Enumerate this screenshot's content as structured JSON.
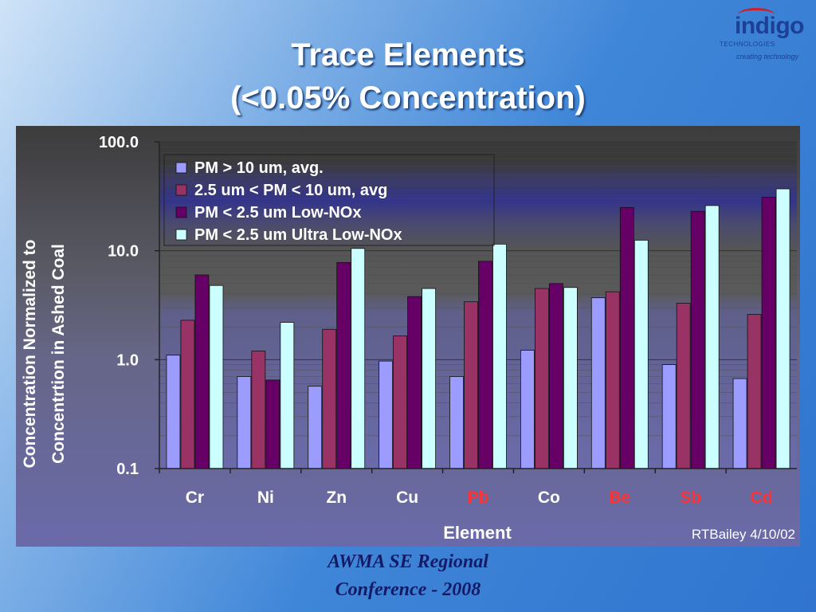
{
  "slide": {
    "title_line1": "Trace Elements",
    "title_line2": "(<0.05% Concentration)",
    "footer_line1": "AWMA SE Regional",
    "footer_line2": "Conference - 2008"
  },
  "logo": {
    "word": "indigo",
    "sub": "TECHNOLOGIES",
    "tagline": "creating technology"
  },
  "chart_data": {
    "type": "bar",
    "scale": "log",
    "ylim": [
      0.1,
      100.0
    ],
    "ytick_labels": [
      "100.0",
      "10.0",
      "1.0",
      "0.1"
    ],
    "xlabel": "Element",
    "ylabel": "Concentration Normalized to Concentrtion in Ashed Coal",
    "credit": "RTBailey 4/10/02",
    "categories": [
      "Cr",
      "Ni",
      "Zn",
      "Cu",
      "Pb",
      "Co",
      "Be",
      "Sb",
      "Cd"
    ],
    "highlight_categories": [
      "Pb",
      "Be",
      "Sb",
      "Cd"
    ],
    "legend_position": "top-left",
    "series": [
      {
        "name": "PM > 10 um, avg.",
        "color": "#9c9cff",
        "values": [
          1.1,
          0.7,
          0.57,
          0.97,
          0.7,
          1.22,
          3.7,
          0.9,
          0.67
        ]
      },
      {
        "name": "2.5 um < PM < 10 um, avg",
        "color": "#993366",
        "values": [
          2.3,
          1.2,
          1.9,
          1.65,
          3.4,
          4.5,
          4.2,
          3.3,
          2.6
        ]
      },
      {
        "name": "PM < 2.5 um Low-NOx",
        "color": "#660066",
        "values": [
          6.0,
          0.65,
          7.8,
          3.8,
          8.0,
          5.0,
          25.0,
          23.0,
          31.0
        ]
      },
      {
        "name": "PM < 2.5 um Ultra Low-NOx",
        "color": "#ccffff",
        "values": [
          4.8,
          2.2,
          10.5,
          4.5,
          11.5,
          4.6,
          12.5,
          26.0,
          37.0
        ]
      }
    ],
    "colors": {
      "category_label": "#ffffff",
      "category_highlight": "#ff3333"
    }
  }
}
